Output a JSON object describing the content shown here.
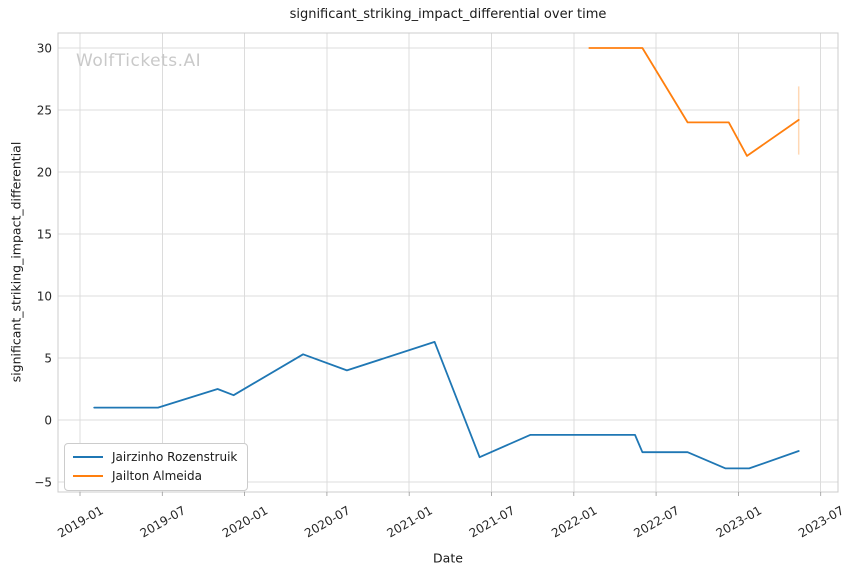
{
  "watermark": "WolfTickets.AI",
  "chart_data": {
    "type": "line",
    "title": "significant_striking_impact_differential over time",
    "xlabel": "Date",
    "ylabel": "significant_striking_impact_differential",
    "grid": true,
    "legend_position": "lower left",
    "xlim": [
      "2018-11-12",
      "2023-08-08"
    ],
    "ylim": [
      -5.8,
      31.2
    ],
    "x_tick_labels": [
      "2019-01",
      "2019-07",
      "2020-01",
      "2020-07",
      "2021-01",
      "2021-07",
      "2022-01",
      "2022-07",
      "2023-01",
      "2023-07"
    ],
    "y_ticks": [
      {
        "value": 30,
        "label": "30"
      },
      {
        "value": 25,
        "label": "25"
      },
      {
        "value": 20,
        "label": "20"
      },
      {
        "value": 15,
        "label": "15"
      },
      {
        "value": 10,
        "label": "10"
      },
      {
        "value": 5,
        "label": "5"
      },
      {
        "value": 0,
        "label": "0"
      },
      {
        "value": -5,
        "label": "−5"
      }
    ],
    "colors": {
      "grid": "#dcdcdc",
      "spine": "#cccccc",
      "tick": "#999999"
    },
    "series": [
      {
        "name": "Jairzinho Rozenstruik",
        "color": "#1f77b4",
        "points": [
          [
            "2019-02-02",
            1.0
          ],
          [
            "2019-06-22",
            1.0
          ],
          [
            "2019-11-02",
            2.5
          ],
          [
            "2019-12-07",
            2.0
          ],
          [
            "2020-05-09",
            5.3
          ],
          [
            "2020-08-15",
            4.0
          ],
          [
            "2021-02-27",
            6.3
          ],
          [
            "2021-06-05",
            -3.0
          ],
          [
            "2021-09-26",
            -1.2
          ],
          [
            "2022-05-15",
            -1.2
          ],
          [
            "2022-06-01",
            -2.6
          ],
          [
            "2022-09-10",
            -2.6
          ],
          [
            "2022-12-03",
            -3.9
          ],
          [
            "2023-01-25",
            -3.9
          ],
          [
            "2023-05-13",
            -2.5
          ]
        ]
      },
      {
        "name": "Jailton Almeida",
        "color": "#ff7f0e",
        "points": [
          [
            "2022-02-05",
            30.0
          ],
          [
            "2022-06-01",
            30.0
          ],
          [
            "2022-09-10",
            24.0
          ],
          [
            "2022-12-10",
            24.0
          ],
          [
            "2023-01-20",
            21.3
          ],
          [
            "2023-05-13",
            24.2
          ]
        ],
        "error_bar": {
          "date": "2023-05-13",
          "low": 21.4,
          "high": 26.9
        }
      }
    ]
  }
}
